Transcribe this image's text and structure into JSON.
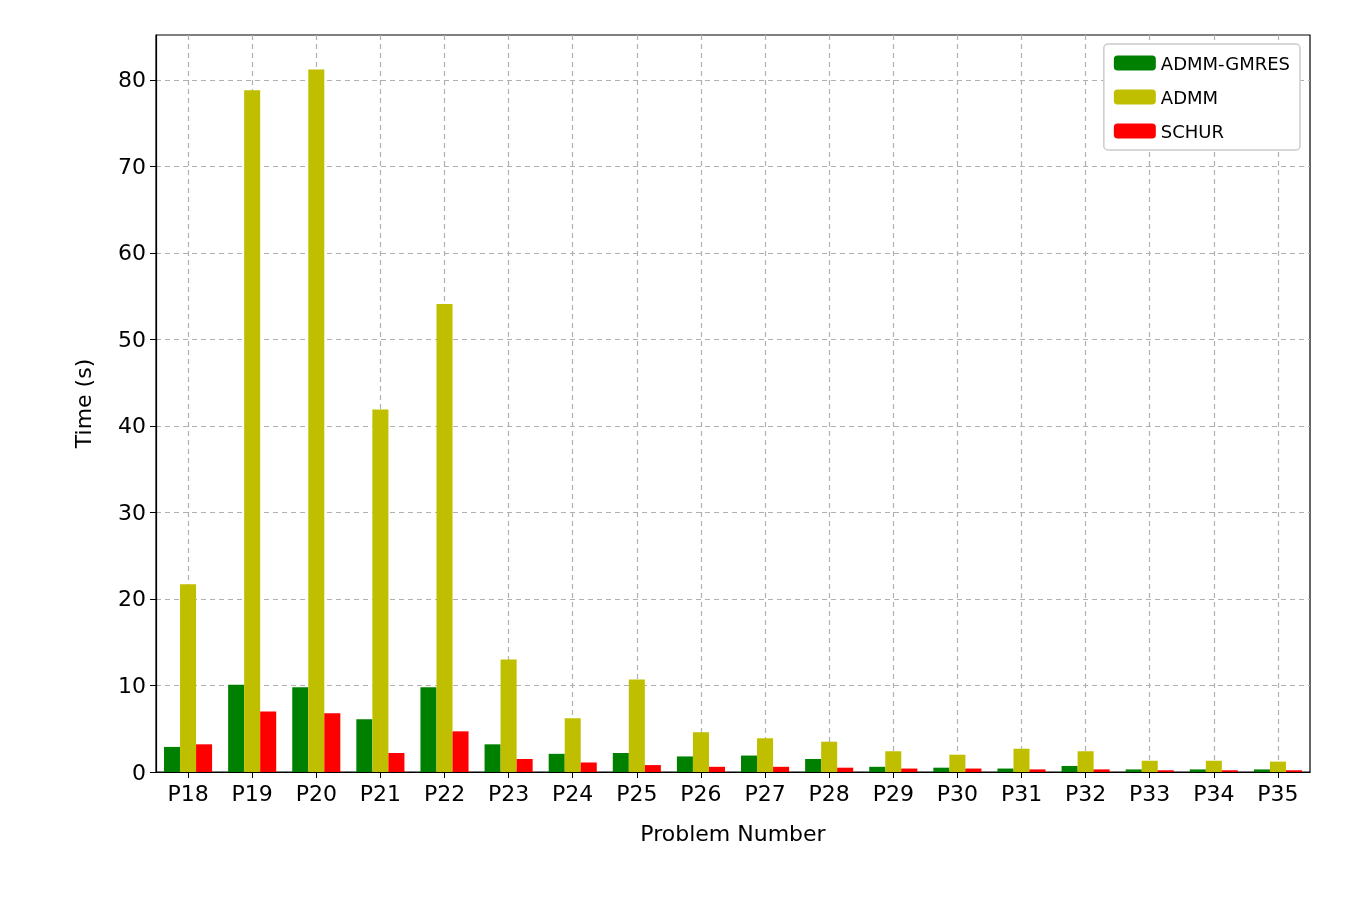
{
  "chart_data": {
    "type": "bar",
    "xlabel": "Problem Number",
    "ylabel": "Time (s)",
    "categories": [
      "P18",
      "P19",
      "P20",
      "P21",
      "P22",
      "P23",
      "P24",
      "P25",
      "P26",
      "P27",
      "P28",
      "P29",
      "P30",
      "P31",
      "P32",
      "P33",
      "P34",
      "P35"
    ],
    "series": [
      {
        "name": "ADMM-GMRES",
        "color": "#008000",
        "values": [
          2.9,
          10.1,
          9.8,
          6.1,
          9.8,
          3.2,
          2.1,
          2.2,
          1.8,
          1.9,
          1.5,
          0.6,
          0.5,
          0.4,
          0.7,
          0.3,
          0.3,
          0.3
        ]
      },
      {
        "name": "ADMM",
        "color": "#bfbf00",
        "values": [
          21.7,
          78.8,
          81.2,
          41.9,
          54.1,
          13.0,
          6.2,
          10.7,
          4.6,
          3.9,
          3.5,
          2.4,
          2.0,
          2.7,
          2.4,
          1.3,
          1.3,
          1.2
        ]
      },
      {
        "name": "SCHUR",
        "color": "#ff0000",
        "values": [
          3.2,
          7.0,
          6.8,
          2.2,
          4.7,
          1.5,
          1.1,
          0.8,
          0.6,
          0.6,
          0.5,
          0.4,
          0.4,
          0.3,
          0.3,
          0.2,
          0.2,
          0.2
        ]
      }
    ],
    "ylim": [
      0,
      85.2
    ],
    "yticks": [
      0,
      10,
      20,
      30,
      40,
      50,
      60,
      70,
      80
    ],
    "grid": true,
    "legend": "top right"
  }
}
